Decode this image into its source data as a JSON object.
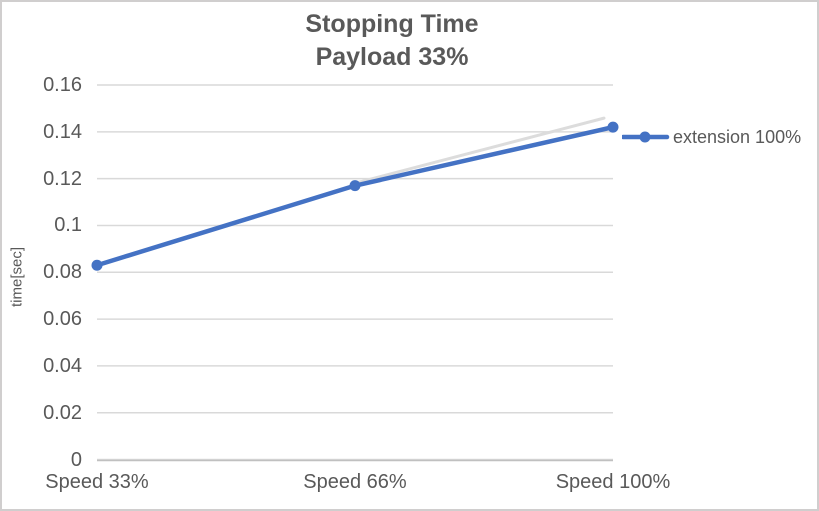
{
  "chart_data": {
    "type": "line",
    "title": "Stopping Time",
    "subtitle": "Payload 33%",
    "categories": [
      "Speed 33%",
      "Speed 66%",
      "Speed 100%"
    ],
    "series": [
      {
        "name": "extension 100%",
        "values": [
          0.083,
          0.117,
          0.142
        ],
        "color": "#4472C4",
        "marker": "circle"
      }
    ],
    "xlabel": "",
    "ylabel": "time[sec]",
    "ylim": [
      0,
      0.16
    ],
    "ytick_step": 0.02,
    "yticks": [
      "0.16",
      "0.14",
      "0.12",
      "0.1",
      "0.08",
      "0.06",
      "0.04",
      "0.02",
      "0"
    ],
    "grid": "horizontal",
    "legend_position": "right-of-last-point"
  },
  "colors": {
    "series_blue": "#4472C4",
    "text": "#595959",
    "gridline": "#D9D9D9",
    "axis_line": "#C0C0C0",
    "shadow_artifact": "#DCDCDC",
    "border": "#D0CECE",
    "background": "#FFFFFF"
  }
}
